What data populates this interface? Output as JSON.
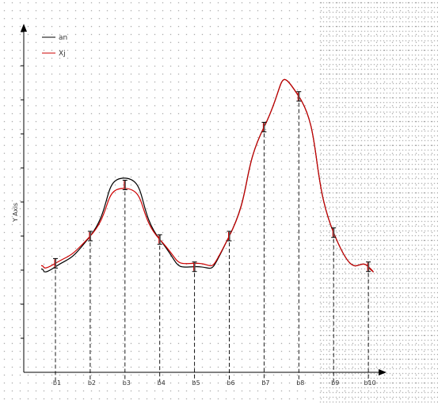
{
  "chart_data": {
    "type": "line",
    "title": "",
    "xlabel": "",
    "ylabel": "Y Axis",
    "ylim": [
      0,
      10
    ],
    "grid": true,
    "legend_position": "top-left",
    "categories": [
      "b1",
      "b2",
      "b3",
      "b4",
      "b5",
      "b6",
      "b7",
      "b8",
      "b9",
      "b10"
    ],
    "series": [
      {
        "name": "an",
        "color": "#000000",
        "values": [
          3.1,
          4.0,
          5.7,
          3.9,
          3.1,
          4.0,
          7.2,
          8.1,
          4.1,
          3.1
        ]
      },
      {
        "name": "Xj",
        "color": "#cc0000",
        "values": [
          3.2,
          4.0,
          5.4,
          3.9,
          3.2,
          4.0,
          7.2,
          8.1,
          4.1,
          3.1
        ]
      }
    ],
    "error_points": [
      3.2,
      4.0,
      5.5,
      3.9,
      3.1,
      4.0,
      7.2,
      8.1,
      4.1,
      3.1
    ]
  }
}
